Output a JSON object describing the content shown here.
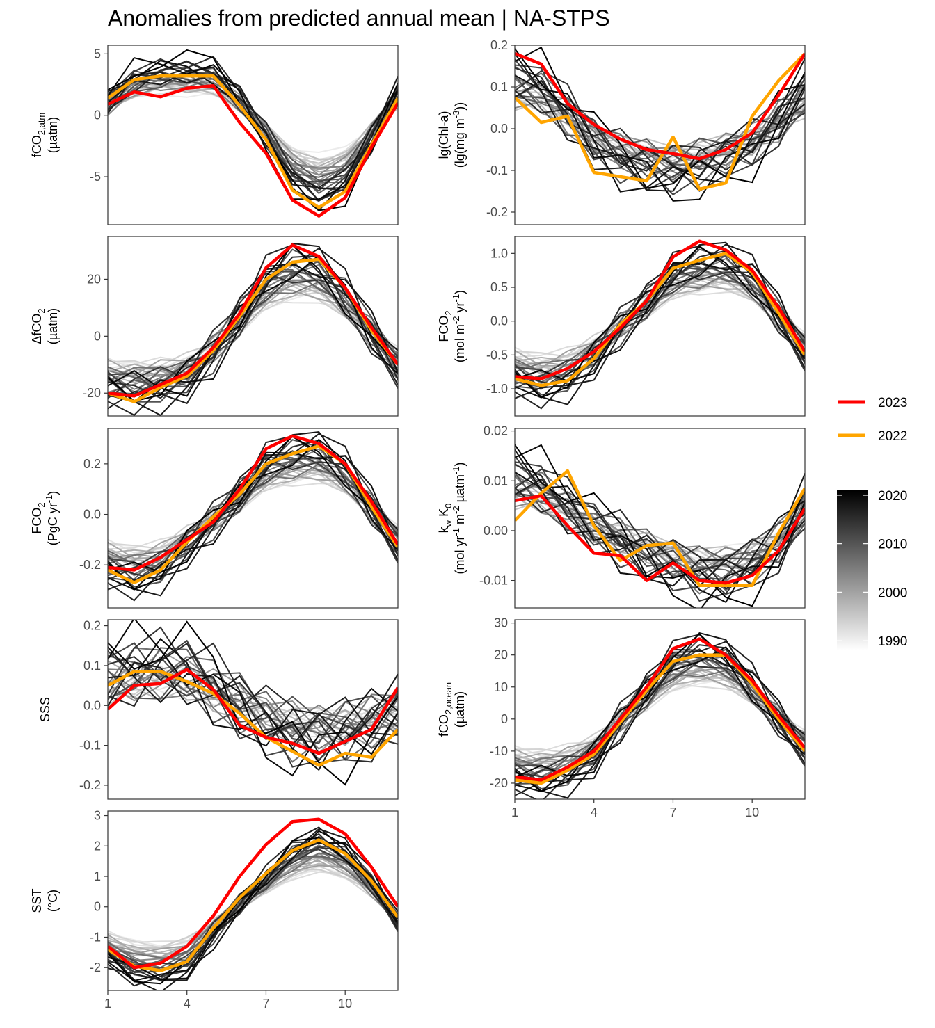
{
  "title": "Anomalies from predicted annual mean | NA-STPS",
  "colors": {
    "y2023": "#ff0000",
    "y2022": "#ffa500",
    "panel_border": "#333333",
    "tick_text": "#4d4d4d"
  },
  "legend": {
    "highlight": [
      {
        "label": "2023",
        "color": "#ff0000"
      },
      {
        "label": "2022",
        "color": "#ffa500"
      }
    ],
    "colorbar": {
      "labels": [
        "2020",
        "2010",
        "2000",
        "1990"
      ],
      "values": [
        2020,
        2010,
        2000,
        1990
      ],
      "min": 1988,
      "max": 2021
    }
  },
  "chart_data": [
    {
      "id": "fco2atm",
      "type": "line",
      "ylabel": [
        "fCO2,atm",
        "(µatm)"
      ],
      "ylabel_parts": [
        [
          [
            "fCO",
            "n"
          ],
          [
            "2,atm",
            "sub"
          ]
        ],
        [
          [
            "(µatm)",
            "n"
          ]
        ]
      ],
      "ylim": [
        -8.9,
        5.7
      ],
      "yticks": [
        5,
        0,
        -5
      ],
      "ytick_labels": [
        "5",
        "0",
        "-5"
      ],
      "xlim": [
        1,
        12
      ],
      "xticks": [
        1,
        4,
        7,
        10
      ],
      "xtick_labels": [
        "1",
        "4",
        "7",
        "10"
      ],
      "show_x": false,
      "y2023": [
        0.9,
        1.9,
        1.5,
        2.2,
        2.4,
        -0.6,
        -3.1,
        -6.9,
        -8.2,
        -6.7,
        -2.6,
        1.0
      ],
      "y2022": [
        1.4,
        2.9,
        3.2,
        3.2,
        3.2,
        0.8,
        -2.0,
        -6.1,
        -7.5,
        -6.2,
        -2.4,
        1.4
      ],
      "bg_mean": [
        1.0,
        2.9,
        3.4,
        3.5,
        3.4,
        1.4,
        -1.6,
        -5.0,
        -6.2,
        -5.2,
        -1.9,
        1.8
      ],
      "bg_spread": 0.6
    },
    {
      "id": "chla",
      "type": "line",
      "ylabel": [
        "lg(Chl-a)",
        "(lg(mg m-3))"
      ],
      "ylabel_parts": [
        [
          [
            "lg(Chl-a)",
            "n"
          ]
        ],
        [
          [
            "(lg(mg m",
            "n"
          ],
          [
            "-3",
            "sup"
          ],
          [
            "))",
            "n"
          ]
        ]
      ],
      "ylim": [
        -0.23,
        0.2
      ],
      "yticks": [
        0.2,
        0.1,
        0.0,
        -0.1,
        -0.2
      ],
      "ytick_labels": [
        "0.2",
        "0.1",
        "0.0",
        "-0.1",
        "-0.2"
      ],
      "xlim": [
        1,
        12
      ],
      "xticks": [
        1,
        4,
        7,
        10
      ],
      "xtick_labels": [
        "1",
        "4",
        "7",
        "10"
      ],
      "show_x": false,
      "y2023": [
        0.18,
        0.155,
        0.06,
        0.01,
        -0.025,
        -0.05,
        -0.06,
        -0.072,
        -0.05,
        -0.01,
        0.08,
        0.18
      ],
      "y2022": [
        0.075,
        0.015,
        0.03,
        -0.105,
        -0.115,
        -0.125,
        -0.02,
        -0.145,
        -0.13,
        0.03,
        0.115,
        0.18
      ],
      "bg_mean": [
        0.12,
        0.1,
        0.04,
        -0.03,
        -0.07,
        -0.09,
        -0.1,
        -0.09,
        -0.07,
        -0.04,
        0.02,
        0.09
      ],
      "bg_spread": 0.035
    },
    {
      "id": "dfco2",
      "type": "line",
      "ylabel": [
        "ΔfCO2",
        "(µatm)"
      ],
      "ylabel_parts": [
        [
          [
            "ΔfCO",
            "n"
          ],
          [
            "2",
            "sub"
          ]
        ],
        [
          [
            "(µatm)",
            "n"
          ]
        ]
      ],
      "ylim": [
        -28,
        35
      ],
      "yticks": [
        20,
        0,
        -20
      ],
      "ytick_labels": [
        "20",
        "0",
        "-20"
      ],
      "xlim": [
        1,
        12
      ],
      "xticks": [
        1,
        4,
        7,
        10
      ],
      "xtick_labels": [
        "1",
        "4",
        "7",
        "10"
      ],
      "show_x": false,
      "y2023": [
        -20,
        -21,
        -17,
        -13,
        -4,
        8,
        24,
        32,
        28,
        17,
        3,
        -10
      ],
      "y2022": [
        -20,
        -23,
        -18,
        -14,
        -5,
        7,
        20,
        26,
        27,
        17,
        2,
        -10
      ],
      "bg_mean": [
        -18,
        -19,
        -18,
        -15,
        -6,
        7,
        20,
        25,
        24,
        15,
        1,
        -12
      ],
      "bg_spread": 4
    },
    {
      "id": "fco2flux",
      "type": "line",
      "ylabel": [
        "FCO2",
        "(mol m-2 yr-1)"
      ],
      "ylabel_parts": [
        [
          [
            "FCO",
            "n"
          ],
          [
            "2",
            "sub"
          ]
        ],
        [
          [
            "(mol m",
            "n"
          ],
          [
            "-2",
            "sup"
          ],
          [
            " yr",
            "n"
          ],
          [
            "-1",
            "sup"
          ],
          [
            ")",
            "n"
          ]
        ]
      ],
      "ylim": [
        -1.4,
        1.25
      ],
      "yticks": [
        1.0,
        0.5,
        0.0,
        -0.5,
        -1.0
      ],
      "ytick_labels": [
        "1.0",
        "0.5",
        "0.0",
        "-0.5",
        "-1.0"
      ],
      "xlim": [
        1,
        12
      ],
      "xticks": [
        1,
        4,
        7,
        10
      ],
      "xtick_labels": [
        "1",
        "4",
        "7",
        "10"
      ],
      "show_x": false,
      "y2023": [
        -0.82,
        -0.85,
        -0.7,
        -0.45,
        -0.1,
        0.3,
        0.95,
        1.18,
        1.05,
        0.75,
        0.2,
        -0.45
      ],
      "y2022": [
        -0.85,
        -0.95,
        -0.88,
        -0.55,
        -0.05,
        0.3,
        0.78,
        0.9,
        1.0,
        0.72,
        0.12,
        -0.5
      ],
      "bg_mean": [
        -0.85,
        -0.95,
        -0.85,
        -0.55,
        -0.1,
        0.3,
        0.7,
        0.85,
        0.88,
        0.65,
        0.1,
        -0.5
      ],
      "bg_spread": 0.15
    },
    {
      "id": "fco2pg",
      "type": "line",
      "ylabel": [
        "FCO2",
        "(PgC yr-1)"
      ],
      "ylabel_parts": [
        [
          [
            "FCO",
            "n"
          ],
          [
            "2",
            "sub"
          ]
        ],
        [
          [
            "(PgC yr",
            "n"
          ],
          [
            "-1",
            "sup"
          ],
          [
            ")",
            "n"
          ]
        ]
      ],
      "ylim": [
        -0.37,
        0.34
      ],
      "yticks": [
        0.2,
        0.0,
        -0.2
      ],
      "ytick_labels": [
        "0.2",
        "0.0",
        "-0.2"
      ],
      "xlim": [
        1,
        12
      ],
      "xticks": [
        1,
        4,
        7,
        10
      ],
      "xtick_labels": [
        "1",
        "4",
        "7",
        "10"
      ],
      "show_x": false,
      "y2023": [
        -0.21,
        -0.22,
        -0.17,
        -0.1,
        -0.03,
        0.1,
        0.26,
        0.31,
        0.28,
        0.2,
        0.05,
        -0.12
      ],
      "y2022": [
        -0.22,
        -0.27,
        -0.22,
        -0.11,
        -0.01,
        0.08,
        0.2,
        0.24,
        0.27,
        0.2,
        0.03,
        -0.13
      ],
      "bg_mean": [
        -0.22,
        -0.25,
        -0.22,
        -0.13,
        -0.03,
        0.08,
        0.2,
        0.24,
        0.25,
        0.18,
        0.03,
        -0.13
      ],
      "bg_spread": 0.04
    },
    {
      "id": "kwk0",
      "type": "line",
      "ylabel": [
        "kw K0",
        "(mol yr-1 m-2 µatm-1)"
      ],
      "ylabel_parts": [
        [
          [
            "k",
            "n"
          ],
          [
            "w",
            "sub"
          ],
          [
            " K",
            "n"
          ],
          [
            "0",
            "sub"
          ]
        ],
        [
          [
            "(mol yr",
            "n"
          ],
          [
            "-1",
            "sup"
          ],
          [
            " m",
            "n"
          ],
          [
            "-2",
            "sup"
          ],
          [
            " µatm",
            "n"
          ],
          [
            "-1",
            "sup"
          ],
          [
            ")",
            "n"
          ]
        ]
      ],
      "ylim": [
        -0.0155,
        0.0205
      ],
      "yticks": [
        0.02,
        0.01,
        0.0,
        -0.01
      ],
      "ytick_labels": [
        "0.02",
        "0.01",
        "0.00",
        "-0.01"
      ],
      "xlim": [
        1,
        12
      ],
      "xticks": [
        1,
        4,
        7,
        10
      ],
      "xtick_labels": [
        "1",
        "4",
        "7",
        "10"
      ],
      "show_x": false,
      "y2023": [
        0.006,
        0.007,
        0.001,
        -0.0045,
        -0.005,
        -0.01,
        -0.0065,
        -0.01,
        -0.0105,
        -0.009,
        -0.004,
        0.0045
      ],
      "y2022": [
        0.002,
        0.0075,
        0.012,
        0.001,
        -0.006,
        -0.003,
        -0.0025,
        -0.011,
        -0.011,
        -0.011,
        -0.0005,
        0.0085
      ],
      "bg_mean": [
        0.011,
        0.009,
        0.005,
        0.001,
        -0.002,
        -0.005,
        -0.007,
        -0.009,
        -0.009,
        -0.007,
        -0.003,
        0.005
      ],
      "bg_spread": 0.003
    },
    {
      "id": "sss",
      "type": "line",
      "ylabel": [
        "SSS"
      ],
      "ylabel_parts": [
        [
          [
            "SSS",
            "n"
          ]
        ]
      ],
      "ylim": [
        -0.235,
        0.215
      ],
      "yticks": [
        0.2,
        0.1,
        0.0,
        -0.1,
        -0.2
      ],
      "ytick_labels": [
        "0.2",
        "0.1",
        "0.0",
        "-0.1",
        "-0.2"
      ],
      "xlim": [
        1,
        12
      ],
      "xticks": [
        1,
        4,
        7,
        10
      ],
      "xtick_labels": [
        "1",
        "4",
        "7",
        "10"
      ],
      "show_x": false,
      "y2023": [
        -0.01,
        0.05,
        0.055,
        0.09,
        0.04,
        -0.05,
        -0.08,
        -0.095,
        -0.12,
        -0.09,
        -0.06,
        0.045
      ],
      "y2022": [
        0.05,
        0.085,
        0.085,
        0.06,
        0.03,
        -0.02,
        -0.08,
        -0.115,
        -0.15,
        -0.12,
        -0.13,
        -0.06
      ],
      "bg_mean": [
        0.07,
        0.09,
        0.1,
        0.09,
        0.05,
        0.0,
        -0.04,
        -0.07,
        -0.08,
        -0.07,
        -0.05,
        -0.02
      ],
      "bg_spread": 0.05
    },
    {
      "id": "fco2ocean",
      "type": "line",
      "ylabel": [
        "fCO2,ocean",
        "(µatm)"
      ],
      "ylabel_parts": [
        [
          [
            "fCO",
            "n"
          ],
          [
            "2,ocean",
            "sub"
          ]
        ],
        [
          [
            "(µatm)",
            "n"
          ]
        ]
      ],
      "ylim": [
        -25,
        31
      ],
      "yticks": [
        30,
        20,
        10,
        0,
        -10,
        -20
      ],
      "ytick_labels": [
        "30",
        "20",
        "10",
        "0",
        "-10",
        "-20"
      ],
      "xlim": [
        1,
        12
      ],
      "xticks": [
        1,
        4,
        7,
        10
      ],
      "xtick_labels": [
        "1",
        "4",
        "7",
        "10"
      ],
      "show_x": true,
      "y2023": [
        -18,
        -19,
        -15,
        -10,
        0,
        10,
        22,
        25,
        20,
        12,
        1,
        -9
      ],
      "y2022": [
        -19,
        -20,
        -16,
        -11,
        -1,
        9,
        18,
        20,
        20,
        11,
        0,
        -10
      ],
      "bg_mean": [
        -18,
        -19,
        -17,
        -12,
        -1,
        9,
        18,
        21,
        19,
        11,
        0,
        -10
      ],
      "bg_spread": 3
    },
    {
      "id": "sst",
      "type": "line",
      "ylabel": [
        "SST",
        "(°C)"
      ],
      "ylabel_parts": [
        [
          [
            "SST",
            "n"
          ]
        ],
        [
          [
            "(°C)",
            "n"
          ]
        ]
      ],
      "ylim": [
        -2.75,
        3.15
      ],
      "yticks": [
        3,
        2,
        1,
        0,
        -1,
        -2
      ],
      "ytick_labels": [
        "3",
        "2",
        "1",
        "0",
        "-1",
        "-2"
      ],
      "xlim": [
        1,
        12
      ],
      "xticks": [
        1,
        4,
        7,
        10
      ],
      "xtick_labels": [
        "1",
        "4",
        "7",
        "10"
      ],
      "show_x": true,
      "y2023": [
        -1.3,
        -2.0,
        -1.85,
        -1.3,
        -0.3,
        1.0,
        2.05,
        2.8,
        2.88,
        2.4,
        1.3,
        0.0
      ],
      "y2022": [
        -1.4,
        -1.95,
        -2.1,
        -1.8,
        -0.7,
        0.3,
        1.1,
        1.85,
        2.2,
        1.75,
        0.85,
        -0.35
      ],
      "bg_mean": [
        -1.6,
        -2.1,
        -2.2,
        -1.9,
        -0.9,
        0.1,
        0.95,
        1.75,
        2.15,
        1.75,
        0.8,
        -0.5
      ],
      "bg_spread": 0.2
    }
  ]
}
